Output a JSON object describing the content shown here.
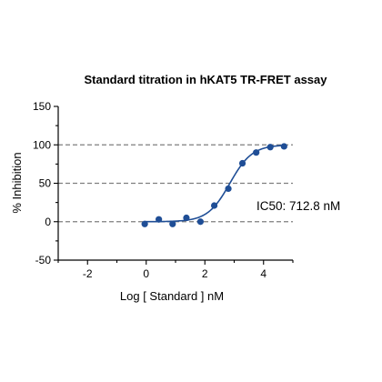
{
  "chart_data": {
    "type": "scatter",
    "title": "Standard titration in hKAT5 TR-FRET assay",
    "xlabel": "Log [ Standard ] nM",
    "ylabel": "% Inhibition",
    "xlim": [
      -3,
      5
    ],
    "ylim": [
      -50,
      150
    ],
    "x_ticks": [
      -2,
      0,
      2,
      4
    ],
    "y_ticks": [
      -50,
      0,
      50,
      100,
      150
    ],
    "reference_lines": [
      0,
      50,
      100
    ],
    "annotation": "IC50:  712.8 nM",
    "fit": {
      "model": "sigmoidal dose-response",
      "ic50_nM": 712.8,
      "bottom": 0,
      "top": 100
    },
    "series": [
      {
        "x": [
          -0.05,
          0.43,
          0.9,
          1.37,
          1.85,
          2.32,
          2.8,
          3.28,
          3.75,
          4.23,
          4.7
        ],
        "y": [
          -3,
          3,
          -3,
          5,
          0,
          21,
          43,
          76,
          90,
          97,
          98
        ]
      }
    ],
    "colors": {
      "series": "#1f4e96",
      "reference_line": "#7f7f7f",
      "axis": "#000000"
    },
    "grid": false,
    "legend": "none"
  }
}
